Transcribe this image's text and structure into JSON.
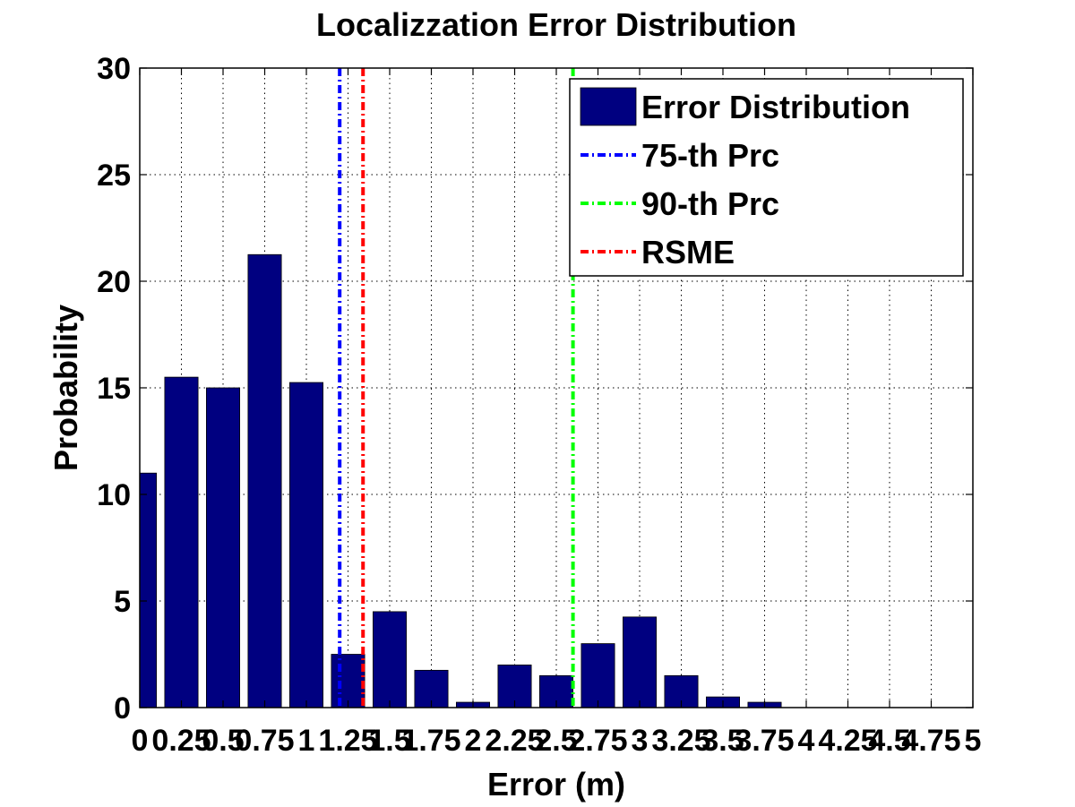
{
  "chart_data": {
    "type": "bar",
    "title": "Localizzation Error Distribution",
    "xlabel": "Error (m)",
    "ylabel": "Probability",
    "xlim": [
      0,
      5
    ],
    "ylim": [
      0,
      30
    ],
    "x_ticks": [
      "0",
      "0.25",
      "0.5",
      "0.75",
      "1",
      "1.25",
      "1.5",
      "1.75",
      "2",
      "2.25",
      "2.5",
      "2.75",
      "3",
      "3.25",
      "3.5",
      "3.75",
      "4",
      "4.25",
      "4.5",
      "4.75",
      "5"
    ],
    "y_ticks": [
      "0",
      "5",
      "10",
      "15",
      "20",
      "25",
      "30"
    ],
    "grid": true,
    "legend_position": "top-right",
    "series": [
      {
        "name": "Error Distribution",
        "type": "bar",
        "color": "#000080",
        "x": [
          0,
          0.25,
          0.5,
          0.75,
          1,
          1.25,
          1.5,
          1.75,
          2,
          2.25,
          2.5,
          2.75,
          3,
          3.25,
          3.5,
          3.75,
          4,
          4.25,
          4.5,
          4.75
        ],
        "values": [
          11.0,
          15.5,
          15.0,
          21.25,
          15.25,
          2.5,
          4.5,
          1.75,
          0.25,
          2.0,
          1.5,
          3.0,
          4.25,
          1.5,
          0.5,
          0.25,
          0,
          0,
          0,
          0
        ]
      },
      {
        "name": "75-th Prc",
        "type": "vline",
        "color": "#0000ff",
        "x": 1.2
      },
      {
        "name": "90-th Prc",
        "type": "vline",
        "color": "#00ff00",
        "x": 2.6
      },
      {
        "name": "RSME",
        "type": "vline",
        "color": "#ff0000",
        "x": 1.34
      }
    ]
  }
}
